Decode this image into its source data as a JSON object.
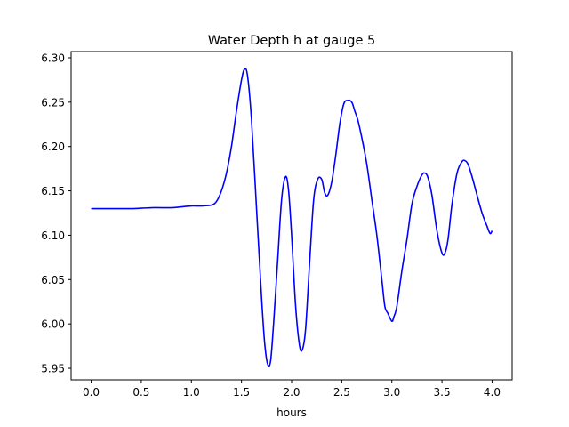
{
  "chart_data": {
    "type": "line",
    "title": "Water Depth h at gauge 5",
    "xlabel": "hours",
    "ylabel": "",
    "xlim": [
      -0.2,
      4.2
    ],
    "ylim": [
      5.937,
      6.307
    ],
    "xticks": [
      0.0,
      0.5,
      1.0,
      1.5,
      2.0,
      2.5,
      3.0,
      3.5,
      4.0
    ],
    "xtick_labels": [
      "0.0",
      "0.5",
      "1.0",
      "1.5",
      "2.0",
      "2.5",
      "3.0",
      "3.5",
      "4.0"
    ],
    "yticks": [
      5.95,
      6.0,
      6.05,
      6.1,
      6.15,
      6.2,
      6.25,
      6.3
    ],
    "ytick_labels": [
      "5.95",
      "6.00",
      "6.05",
      "6.10",
      "6.15",
      "6.20",
      "6.25",
      "6.30"
    ],
    "grid": false,
    "series": [
      {
        "color": "#0000ff",
        "x": [
          0.0,
          0.2,
          0.4,
          0.6,
          0.8,
          0.9,
          1.0,
          1.1,
          1.2,
          1.25,
          1.3,
          1.35,
          1.4,
          1.45,
          1.5,
          1.53,
          1.56,
          1.6,
          1.65,
          1.7,
          1.73,
          1.76,
          1.79,
          1.82,
          1.86,
          1.9,
          1.94,
          1.97,
          2.0,
          2.04,
          2.08,
          2.11,
          2.14,
          2.18,
          2.22,
          2.26,
          2.3,
          2.33,
          2.36,
          2.4,
          2.44,
          2.48,
          2.52,
          2.56,
          2.6,
          2.63,
          2.66,
          2.7,
          2.75,
          2.8,
          2.85,
          2.9,
          2.93,
          2.96,
          3.0,
          3.02,
          3.05,
          3.1,
          3.15,
          3.2,
          3.25,
          3.3,
          3.33,
          3.36,
          3.4,
          3.45,
          3.5,
          3.53,
          3.56,
          3.6,
          3.65,
          3.7,
          3.73,
          3.76,
          3.8,
          3.85,
          3.9,
          3.95,
          3.98,
          4.0
        ],
        "y": [
          6.13,
          6.13,
          6.13,
          6.131,
          6.131,
          6.132,
          6.133,
          6.133,
          6.134,
          6.138,
          6.15,
          6.17,
          6.2,
          6.24,
          6.275,
          6.287,
          6.28,
          6.23,
          6.13,
          6.03,
          5.98,
          5.955,
          5.958,
          6.0,
          6.07,
          6.14,
          6.166,
          6.15,
          6.1,
          6.02,
          5.975,
          5.972,
          5.995,
          6.07,
          6.14,
          6.163,
          6.163,
          6.148,
          6.145,
          6.16,
          6.19,
          6.225,
          6.248,
          6.252,
          6.25,
          6.24,
          6.23,
          6.21,
          6.18,
          6.14,
          6.1,
          6.05,
          6.02,
          6.012,
          6.003,
          6.008,
          6.02,
          6.06,
          6.095,
          6.135,
          6.155,
          6.168,
          6.17,
          6.165,
          6.145,
          6.105,
          6.08,
          6.08,
          6.095,
          6.135,
          6.17,
          6.183,
          6.184,
          6.18,
          6.166,
          6.145,
          6.125,
          6.11,
          6.102,
          6.105
        ]
      }
    ]
  }
}
